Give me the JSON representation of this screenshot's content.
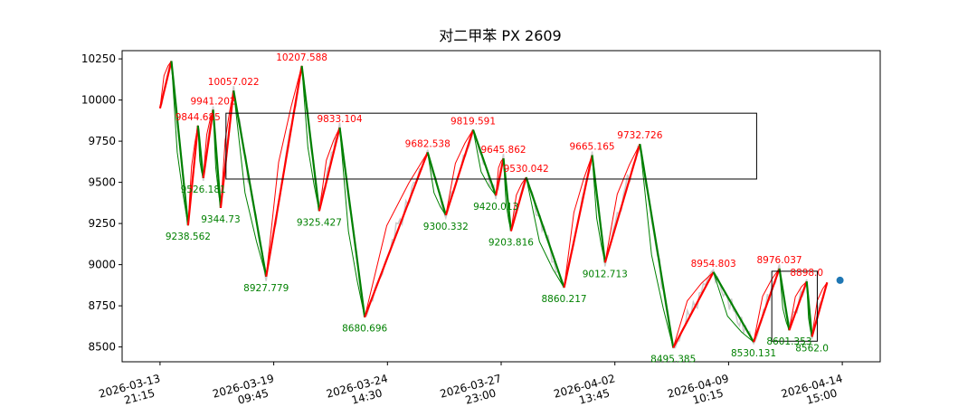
{
  "chart_data": {
    "type": "line",
    "title": "对二甲苯 PX 2609",
    "xlabel": "",
    "ylabel": "",
    "ylim": [
      8410,
      10300
    ],
    "y_ticks": [
      8500,
      8750,
      9000,
      9250,
      9500,
      9750,
      10000,
      10250
    ],
    "x_ticks": [
      {
        "date": "2026-03-13",
        "time": "21:15",
        "pos": 0.05
      },
      {
        "date": "2026-03-19",
        "time": "09:45",
        "pos": 0.2
      },
      {
        "date": "2026-03-24",
        "time": "14:30",
        "pos": 0.35
      },
      {
        "date": "2026-03-27",
        "time": "23:00",
        "pos": 0.5
      },
      {
        "date": "2026-04-02",
        "time": "13:45",
        "pos": 0.65
      },
      {
        "date": "2026-04-09",
        "time": "10:15",
        "pos": 0.8
      },
      {
        "date": "2026-04-14",
        "time": "15:00",
        "pos": 0.95
      }
    ],
    "colors": {
      "up": "#ff0000",
      "down": "#008000",
      "price": "#cccccc",
      "point": "#1f77b4"
    },
    "pivots": [
      {
        "x": 0.05,
        "y": 9950,
        "label": ""
      },
      {
        "x": 0.065,
        "y": 10237,
        "label": ""
      },
      {
        "x": 0.087,
        "y": 9238.562,
        "label": "9238.562"
      },
      {
        "x": 0.1,
        "y": 9844.685,
        "label": "9844.685"
      },
      {
        "x": 0.107,
        "y": 9526.181,
        "label": "9526.181"
      },
      {
        "x": 0.12,
        "y": 9941.202,
        "label": "9941.202"
      },
      {
        "x": 0.13,
        "y": 9344.73,
        "label": "9344.73"
      },
      {
        "x": 0.147,
        "y": 10057.022,
        "label": "10057.022"
      },
      {
        "x": 0.19,
        "y": 8927.779,
        "label": "8927.779"
      },
      {
        "x": 0.237,
        "y": 10207.588,
        "label": "10207.588"
      },
      {
        "x": 0.26,
        "y": 9325.427,
        "label": "9325.427"
      },
      {
        "x": 0.287,
        "y": 9833.104,
        "label": "9833.104"
      },
      {
        "x": 0.32,
        "y": 8680.696,
        "label": "8680.696"
      },
      {
        "x": 0.403,
        "y": 9682.538,
        "label": "9682.538"
      },
      {
        "x": 0.427,
        "y": 9300.332,
        "label": "9300.332"
      },
      {
        "x": 0.463,
        "y": 9819.591,
        "label": "9819.591"
      },
      {
        "x": 0.493,
        "y": 9420.013,
        "label": "9420.013"
      },
      {
        "x": 0.503,
        "y": 9645.862,
        "label": "9645.862"
      },
      {
        "x": 0.513,
        "y": 9203.816,
        "label": "9203.816"
      },
      {
        "x": 0.533,
        "y": 9530.042,
        "label": "9530.042"
      },
      {
        "x": 0.583,
        "y": 8860.217,
        "label": "8860.217"
      },
      {
        "x": 0.62,
        "y": 9665.165,
        "label": "9665.165"
      },
      {
        "x": 0.637,
        "y": 9012.713,
        "label": "9012.713"
      },
      {
        "x": 0.683,
        "y": 9732.726,
        "label": "9732.726"
      },
      {
        "x": 0.727,
        "y": 8495.385,
        "label": "8495.385"
      },
      {
        "x": 0.78,
        "y": 8954.803,
        "label": "8954.803"
      },
      {
        "x": 0.833,
        "y": 8530.131,
        "label": "8530.131"
      },
      {
        "x": 0.867,
        "y": 8976.037,
        "label": "8976.037"
      },
      {
        "x": 0.88,
        "y": 8601.353,
        "label": "8601.353"
      },
      {
        "x": 0.903,
        "y": 8898.0,
        "label": "8898.0"
      },
      {
        "x": 0.91,
        "y": 8562.0,
        "label": "8562.0"
      },
      {
        "x": 0.93,
        "y": 8892,
        "label": ""
      }
    ],
    "boxes": [
      {
        "x0": 0.137,
        "x1": 0.837,
        "y0": 9520,
        "y1": 9920
      },
      {
        "x0": 0.857,
        "x1": 0.917,
        "y0": 8535,
        "y1": 8960
      }
    ],
    "last_point": {
      "x": 0.947,
      "y": 8905
    }
  }
}
